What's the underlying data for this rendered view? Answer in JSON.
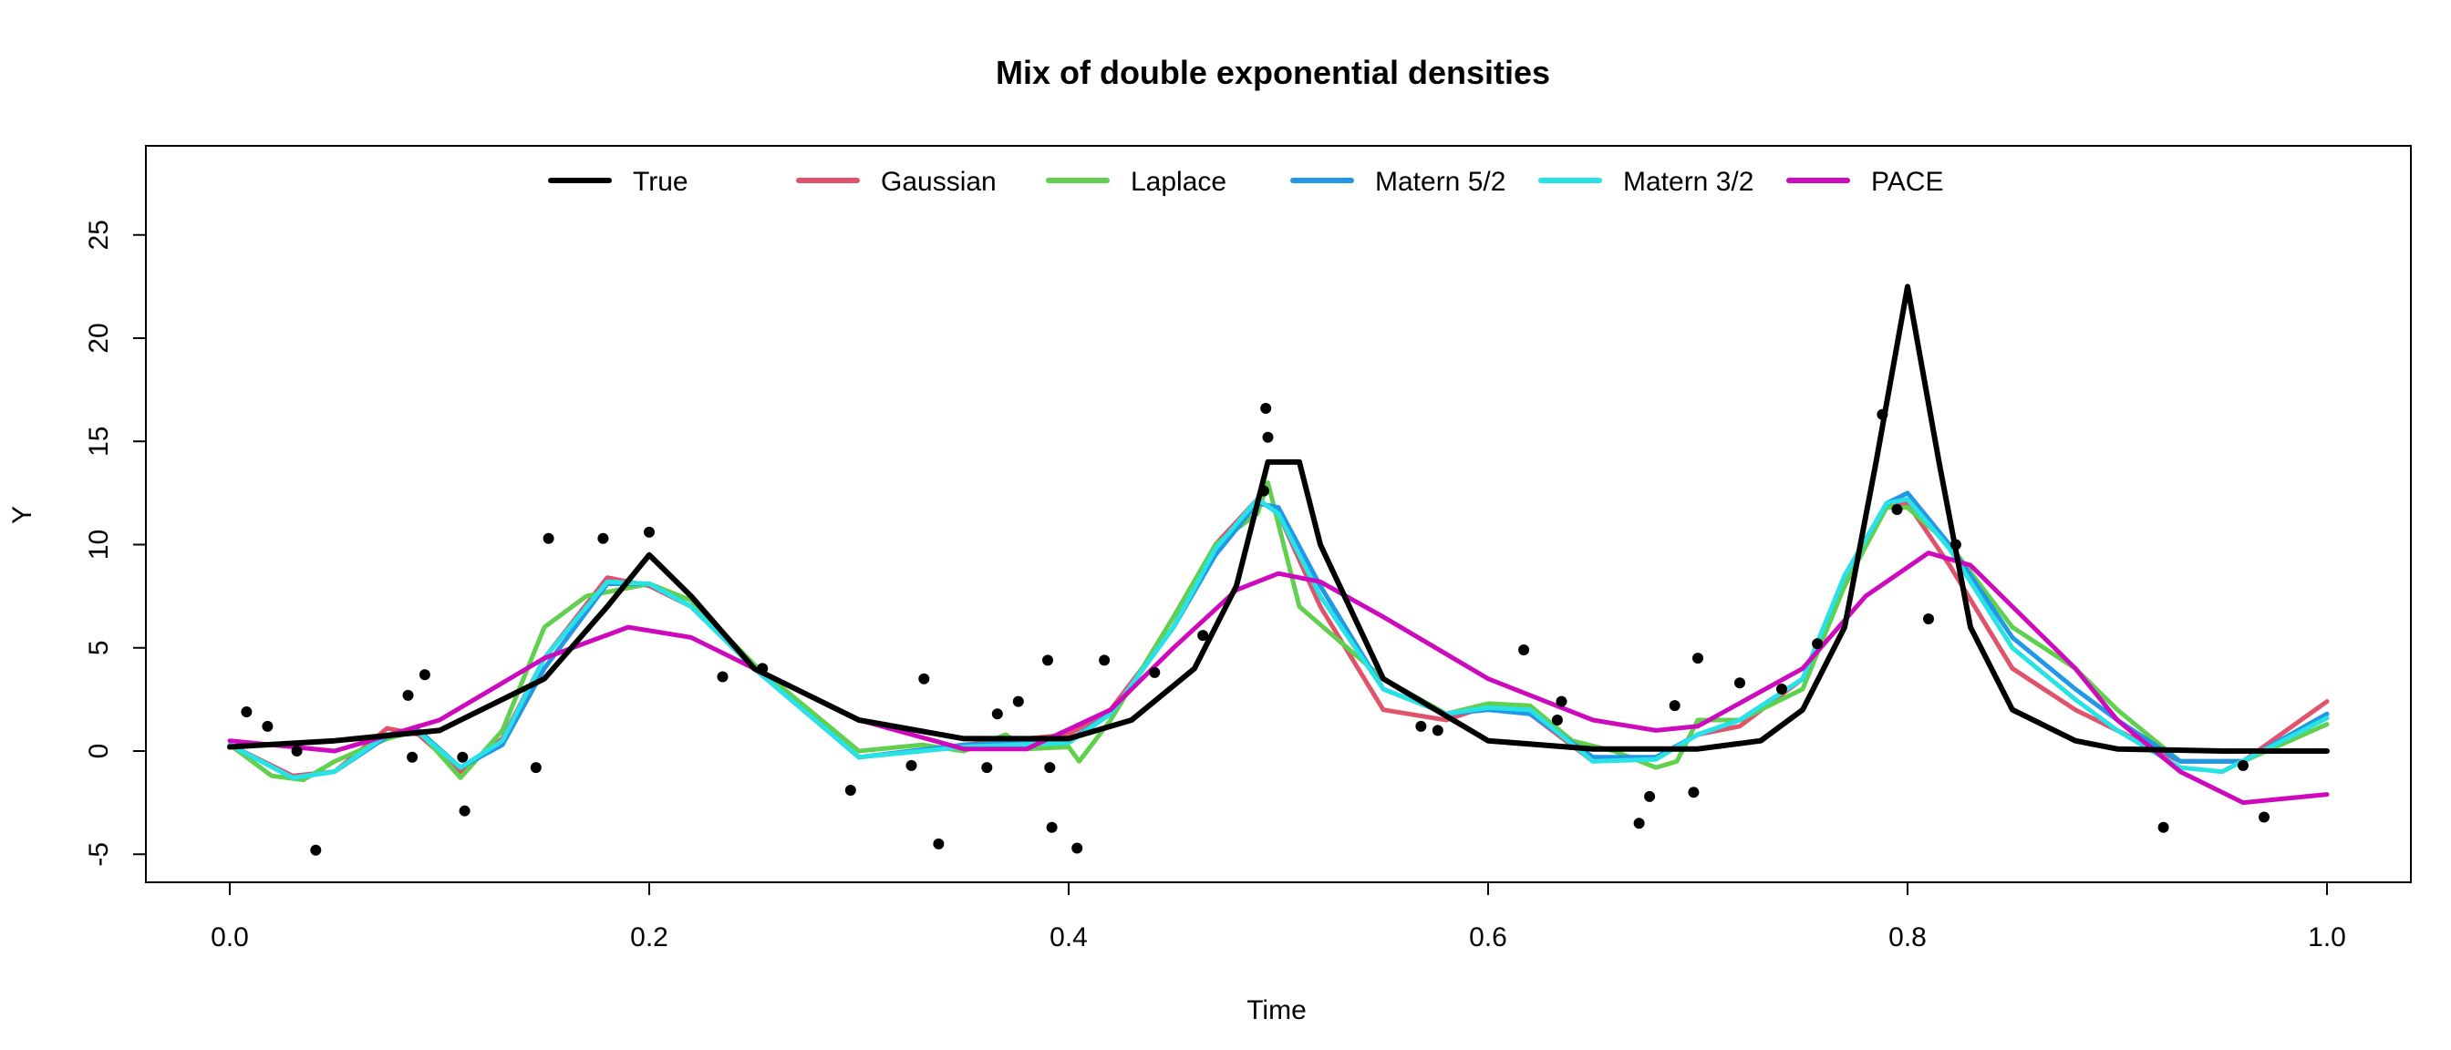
{
  "chart_data": {
    "type": "line",
    "title": "Mix of double exponential densities",
    "xlabel": "Time",
    "ylabel": "Y",
    "xlim": [
      0.0,
      1.0
    ],
    "ylim": [
      -6,
      28
    ],
    "x_ticks": [
      "0.0",
      "0.2",
      "0.4",
      "0.6",
      "0.8",
      "1.0"
    ],
    "y_ticks": [
      "-5",
      "0",
      "5",
      "10",
      "15",
      "20",
      "25"
    ],
    "legend_position": "top",
    "grid": false,
    "series": [
      {
        "name": "True",
        "color": "#000000",
        "x": [
          0.0,
          0.05,
          0.1,
          0.15,
          0.18,
          0.2,
          0.22,
          0.25,
          0.3,
          0.35,
          0.4,
          0.43,
          0.46,
          0.48,
          0.495,
          0.51,
          0.52,
          0.55,
          0.6,
          0.65,
          0.7,
          0.73,
          0.75,
          0.77,
          0.785,
          0.8,
          0.815,
          0.83,
          0.85,
          0.88,
          0.9,
          0.95,
          1.0
        ],
        "y": [
          0.2,
          0.5,
          1.0,
          3.5,
          7.0,
          9.5,
          7.5,
          4.0,
          1.5,
          0.6,
          0.6,
          1.5,
          4.0,
          8.0,
          14.0,
          14.0,
          10.0,
          3.5,
          0.5,
          0.1,
          0.1,
          0.5,
          2.0,
          6.0,
          14.0,
          22.5,
          14.0,
          6.0,
          2.0,
          0.5,
          0.1,
          0.0,
          0.0
        ]
      },
      {
        "name": "Gaussian",
        "color": "#df536b",
        "x": [
          0.0,
          0.03,
          0.05,
          0.075,
          0.09,
          0.11,
          0.13,
          0.15,
          0.18,
          0.2,
          0.22,
          0.25,
          0.3,
          0.35,
          0.4,
          0.42,
          0.45,
          0.47,
          0.49,
          0.5,
          0.52,
          0.55,
          0.58,
          0.6,
          0.62,
          0.65,
          0.68,
          0.7,
          0.72,
          0.75,
          0.77,
          0.79,
          0.8,
          0.82,
          0.85,
          0.88,
          0.9,
          0.93,
          0.96,
          1.0
        ],
        "y": [
          0.3,
          -1.2,
          -1.0,
          1.1,
          0.8,
          -1.0,
          0.6,
          4.5,
          8.4,
          8.0,
          7.0,
          4.0,
          -0.3,
          0.3,
          0.8,
          2.0,
          6.0,
          10.0,
          12.2,
          11.5,
          7.0,
          2.0,
          1.5,
          2.2,
          1.8,
          -0.5,
          -0.3,
          0.8,
          1.2,
          3.5,
          8.0,
          12.0,
          12.0,
          9.0,
          4.0,
          2.0,
          1.0,
          -0.5,
          -0.5,
          2.4
        ]
      },
      {
        "name": "Laplace",
        "color": "#61d04f",
        "x": [
          0.0,
          0.02,
          0.035,
          0.05,
          0.075,
          0.09,
          0.11,
          0.13,
          0.15,
          0.17,
          0.2,
          0.22,
          0.25,
          0.3,
          0.33,
          0.35,
          0.37,
          0.38,
          0.4,
          0.405,
          0.42,
          0.45,
          0.47,
          0.49,
          0.495,
          0.51,
          0.55,
          0.58,
          0.6,
          0.62,
          0.64,
          0.66,
          0.68,
          0.69,
          0.7,
          0.72,
          0.75,
          0.77,
          0.79,
          0.8,
          0.82,
          0.85,
          0.88,
          0.9,
          0.93,
          0.96,
          1.0
        ],
        "y": [
          0.3,
          -1.2,
          -1.4,
          -0.5,
          0.6,
          1.0,
          -1.3,
          1.0,
          6.0,
          7.5,
          8.1,
          7.3,
          4.2,
          0.0,
          0.3,
          0.0,
          0.8,
          0.1,
          0.2,
          -0.5,
          1.5,
          6.5,
          10.0,
          11.5,
          13.0,
          7.0,
          3.5,
          1.8,
          2.3,
          2.2,
          0.5,
          0.0,
          -0.8,
          -0.5,
          1.5,
          1.5,
          3.0,
          8.0,
          11.8,
          11.8,
          10.0,
          6.0,
          4.0,
          2.0,
          -0.5,
          -0.5,
          1.3
        ]
      },
      {
        "name": "Matern 5/2",
        "color": "#2297e6",
        "x": [
          0.0,
          0.03,
          0.05,
          0.075,
          0.09,
          0.11,
          0.13,
          0.15,
          0.18,
          0.2,
          0.22,
          0.25,
          0.3,
          0.35,
          0.4,
          0.42,
          0.45,
          0.47,
          0.49,
          0.5,
          0.52,
          0.55,
          0.58,
          0.6,
          0.62,
          0.65,
          0.68,
          0.7,
          0.72,
          0.75,
          0.77,
          0.79,
          0.8,
          0.82,
          0.85,
          0.88,
          0.9,
          0.93,
          0.96,
          1.0
        ],
        "y": [
          0.3,
          -1.3,
          -1.0,
          0.7,
          1.0,
          -0.8,
          0.3,
          4.0,
          8.1,
          8.1,
          7.0,
          4.0,
          -0.3,
          0.3,
          0.5,
          1.8,
          6.0,
          9.5,
          12.0,
          11.8,
          8.0,
          3.0,
          1.8,
          2.0,
          1.8,
          -0.3,
          -0.3,
          0.8,
          1.5,
          3.5,
          8.5,
          12.0,
          12.5,
          10.0,
          5.5,
          3.0,
          1.5,
          -0.5,
          -0.5,
          1.8
        ]
      },
      {
        "name": "Matern 3/2",
        "color": "#28e2e5",
        "x": [
          0.0,
          0.03,
          0.05,
          0.075,
          0.09,
          0.11,
          0.13,
          0.15,
          0.18,
          0.2,
          0.22,
          0.25,
          0.3,
          0.35,
          0.4,
          0.42,
          0.45,
          0.47,
          0.49,
          0.5,
          0.52,
          0.55,
          0.58,
          0.6,
          0.62,
          0.65,
          0.68,
          0.7,
          0.72,
          0.75,
          0.77,
          0.79,
          0.8,
          0.82,
          0.85,
          0.88,
          0.9,
          0.93,
          0.95,
          1.0
        ],
        "y": [
          0.3,
          -1.3,
          -1.0,
          0.8,
          0.9,
          -0.8,
          0.5,
          4.5,
          8.2,
          8.1,
          7.0,
          4.0,
          -0.3,
          0.2,
          0.4,
          1.8,
          6.0,
          9.8,
          12.2,
          11.5,
          7.5,
          3.0,
          1.8,
          2.1,
          2.0,
          -0.5,
          -0.4,
          0.8,
          1.5,
          3.5,
          8.5,
          12.0,
          12.2,
          9.8,
          5.0,
          2.5,
          1.0,
          -0.8,
          -1.0,
          1.6
        ]
      },
      {
        "name": "PACE",
        "color": "#cd0bbc",
        "x": [
          0.0,
          0.05,
          0.1,
          0.15,
          0.19,
          0.22,
          0.25,
          0.3,
          0.35,
          0.38,
          0.42,
          0.45,
          0.48,
          0.5,
          0.52,
          0.55,
          0.6,
          0.65,
          0.68,
          0.7,
          0.75,
          0.78,
          0.81,
          0.83,
          0.85,
          0.88,
          0.9,
          0.93,
          0.96,
          1.0
        ],
        "y": [
          0.5,
          0.0,
          1.5,
          4.5,
          6.0,
          5.5,
          4.0,
          1.5,
          0.1,
          0.1,
          2.0,
          5.0,
          7.8,
          8.6,
          8.2,
          6.5,
          3.5,
          1.5,
          1.0,
          1.2,
          4.0,
          7.5,
          9.6,
          9.0,
          7.0,
          4.0,
          1.5,
          -1.0,
          -2.5,
          -2.1
        ]
      }
    ],
    "points": {
      "color": "#000000",
      "x": [
        0.008,
        0.018,
        0.032,
        0.041,
        0.085,
        0.087,
        0.093,
        0.111,
        0.112,
        0.146,
        0.152,
        0.178,
        0.2,
        0.235,
        0.254,
        0.296,
        0.325,
        0.331,
        0.338,
        0.361,
        0.366,
        0.376,
        0.39,
        0.391,
        0.392,
        0.404,
        0.417,
        0.441,
        0.464,
        0.493,
        0.494,
        0.495,
        0.568,
        0.576,
        0.617,
        0.633,
        0.635,
        0.672,
        0.677,
        0.689,
        0.698,
        0.7,
        0.72,
        0.74,
        0.757,
        0.788,
        0.795,
        0.81,
        0.823,
        0.922,
        0.96,
        0.97
      ],
      "y": [
        1.9,
        1.2,
        0.0,
        -4.8,
        2.7,
        -0.3,
        3.7,
        -0.3,
        -2.9,
        -0.8,
        10.3,
        10.3,
        10.6,
        3.6,
        4.0,
        -1.9,
        -0.7,
        3.5,
        -4.5,
        -0.8,
        1.8,
        2.4,
        4.4,
        -0.8,
        -3.7,
        -4.7,
        4.4,
        3.8,
        5.6,
        12.6,
        16.6,
        15.2,
        1.2,
        1.0,
        4.9,
        1.5,
        2.4,
        -3.5,
        -2.2,
        2.2,
        -2.0,
        4.5,
        3.3,
        3.0,
        5.2,
        16.3,
        11.7,
        6.4,
        10.0,
        -3.7,
        -0.7,
        -3.2
      ]
    }
  }
}
